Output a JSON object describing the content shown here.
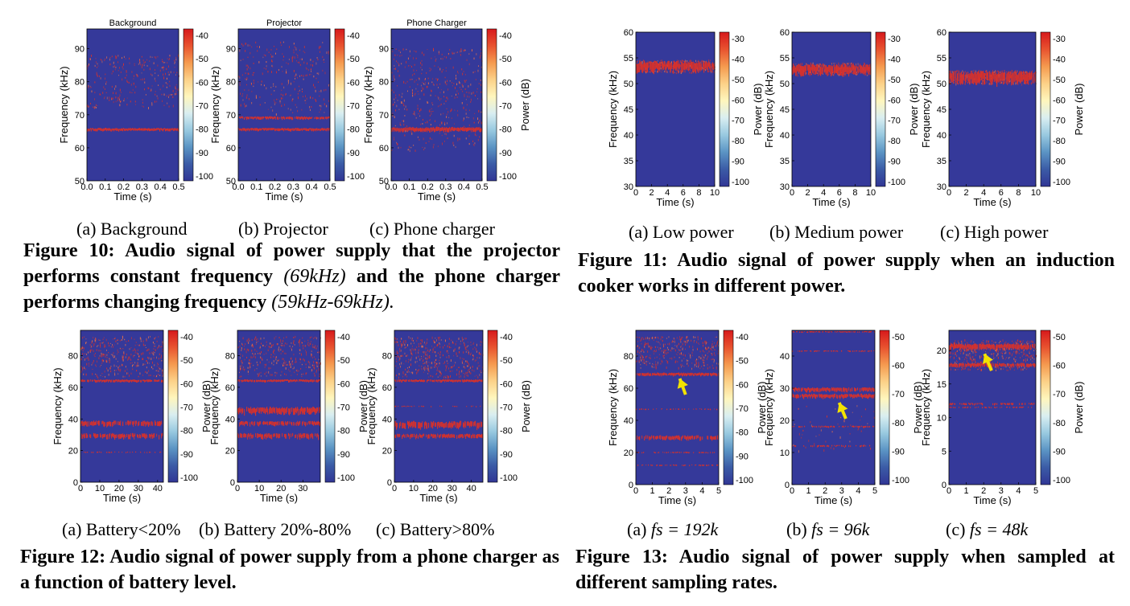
{
  "colors": {
    "background": "#35399a",
    "signal": "#d8312a",
    "arrow": "#f2e200"
  },
  "figure10": {
    "subcaptions": [
      "(a) Background",
      "(b) Projector",
      "(c) Phone charger"
    ],
    "caption_main": "Figure 10: Audio signal of power supply that the projector performs constant frequency",
    "caption_f1": "(69kHz)",
    "caption_mid": "and the phone charger performs changing frequency",
    "caption_f2": "(59kHz-69kHz).",
    "chart_data": [
      {
        "type": "heatmap",
        "title": "Background",
        "xlabel": "Time (s)",
        "ylabel": "Frequency (kHz)",
        "colorbar_label": "",
        "xticks": [
          "0.0",
          "0.1",
          "0.2",
          "0.3",
          "0.4",
          "0.5"
        ],
        "yticks": [
          "50",
          "60",
          "70",
          "80",
          "90"
        ],
        "xlim": [
          0,
          0.5
        ],
        "ylim": [
          50,
          96
        ],
        "cticks": [
          "-40",
          "-50",
          "-60",
          "-70",
          "-80",
          "-90",
          "-100"
        ],
        "bands": [
          {
            "freq": 65.5,
            "width": 0.8,
            "density": 1.0
          }
        ],
        "scatter": {
          "lo": 72,
          "hi": 88,
          "density": 0.25
        },
        "arrows": []
      },
      {
        "type": "heatmap",
        "title": "Projector",
        "xlabel": "Time (s)",
        "ylabel": "Frequency (kHz)",
        "colorbar_label": "",
        "xticks": [
          "0.0",
          "0.1",
          "0.2",
          "0.3",
          "0.4",
          "0.5"
        ],
        "yticks": [
          "50",
          "60",
          "70",
          "80",
          "90"
        ],
        "xlim": [
          0,
          0.5
        ],
        "ylim": [
          50,
          96
        ],
        "cticks": [
          "-40",
          "-50",
          "-60",
          "-70",
          "-80",
          "-90",
          "-100"
        ],
        "bands": [
          {
            "freq": 65.5,
            "width": 0.8,
            "density": 1.0
          },
          {
            "freq": 69,
            "width": 0.8,
            "density": 0.8
          }
        ],
        "scatter": {
          "lo": 70,
          "hi": 92,
          "density": 0.25
        },
        "arrows": []
      },
      {
        "type": "heatmap",
        "title": "Phone Charger",
        "xlabel": "Time (s)",
        "ylabel": "Frequency (kHz)",
        "colorbar_label": "Power (dB)",
        "xticks": [
          "0.0",
          "0.1",
          "0.2",
          "0.3",
          "0.4",
          "0.5"
        ],
        "yticks": [
          "50",
          "60",
          "70",
          "80",
          "90"
        ],
        "xlim": [
          0,
          0.5
        ],
        "ylim": [
          50,
          96
        ],
        "cticks": [
          "-40",
          "-50",
          "-60",
          "-70",
          "-80",
          "-90",
          "-100"
        ],
        "bands": [
          {
            "freq": 65.5,
            "width": 1.2,
            "density": 1.0
          }
        ],
        "scatter": {
          "lo": 59,
          "hi": 90,
          "density": 0.4
        },
        "arrows": []
      }
    ]
  },
  "figure11": {
    "subcaptions": [
      "(a) Low power",
      "(b) Medium power",
      "(c) High power"
    ],
    "caption": "Figure 11: Audio signal of power supply when an induction cooker works in different power.",
    "chart_data": [
      {
        "type": "heatmap",
        "title": "",
        "xlabel": "Time (s)",
        "ylabel": "Frequency (kHz)",
        "colorbar_label": "Power (dB)",
        "xticks": [
          "0",
          "2",
          "4",
          "6",
          "8",
          "10"
        ],
        "yticks": [
          "30",
          "35",
          "40",
          "45",
          "50",
          "55",
          "60"
        ],
        "xlim": [
          0,
          10
        ],
        "ylim": [
          30,
          60
        ],
        "cticks": [
          "-30",
          "-40",
          "-50",
          "-60",
          "-70",
          "-80",
          "-90",
          "-100"
        ],
        "bands": [
          {
            "freq": 53.2,
            "width": 1.8,
            "density": 0.9
          }
        ],
        "scatter": {
          "lo": 52,
          "hi": 54.5,
          "density": 0.3
        },
        "arrows": []
      },
      {
        "type": "heatmap",
        "title": "",
        "xlabel": "Time (s)",
        "ylabel": "Frequency (kHz)",
        "colorbar_label": "Power (dB)",
        "xticks": [
          "0",
          "2",
          "4",
          "6",
          "8",
          "10"
        ],
        "yticks": [
          "30",
          "35",
          "40",
          "45",
          "50",
          "55",
          "60"
        ],
        "xlim": [
          0,
          10
        ],
        "ylim": [
          30,
          60
        ],
        "cticks": [
          "-30",
          "-40",
          "-50",
          "-60",
          "-70",
          "-80",
          "-90",
          "-100"
        ],
        "bands": [
          {
            "freq": 52.6,
            "width": 1.8,
            "density": 0.9
          }
        ],
        "scatter": {
          "lo": 51.5,
          "hi": 54,
          "density": 0.3
        },
        "arrows": []
      },
      {
        "type": "heatmap",
        "title": "",
        "xlabel": "Time (s)",
        "ylabel": "Frequency (kHz)",
        "colorbar_label": "Power (dB)",
        "xticks": [
          "0",
          "2",
          "4",
          "6",
          "8",
          "10"
        ],
        "yticks": [
          "30",
          "35",
          "40",
          "45",
          "50",
          "55",
          "60"
        ],
        "xlim": [
          0,
          10
        ],
        "ylim": [
          30,
          60
        ],
        "cticks": [
          "-30",
          "-40",
          "-50",
          "-60",
          "-70",
          "-80",
          "-90",
          "-100"
        ],
        "bands": [
          {
            "freq": 51.0,
            "width": 2.2,
            "density": 0.9
          }
        ],
        "scatter": {
          "lo": 49.8,
          "hi": 52.5,
          "density": 0.3
        },
        "arrows": []
      }
    ]
  },
  "figure12": {
    "subcaptions": [
      "(a) Battery<20%",
      "(b) Battery 20%-80%",
      "(c) Battery>80%"
    ],
    "caption": "Figure 12: Audio signal of power supply from a phone charger as a function of battery level.",
    "chart_data": [
      {
        "type": "heatmap",
        "title": "",
        "xlabel": "Time (s)",
        "ylabel": "Frequency (kHz)",
        "colorbar_label": "Power (dB)",
        "xticks": [
          "0",
          "10",
          "20",
          "30",
          "40"
        ],
        "xtickvals": [
          0,
          10,
          20,
          30,
          40
        ],
        "yticks": [
          "0",
          "20",
          "40",
          "60",
          "80"
        ],
        "xlim": [
          0,
          43
        ],
        "ylim": [
          0,
          96
        ],
        "cticks": [
          "-40",
          "-50",
          "-60",
          "-70",
          "-80",
          "-90",
          "-100"
        ],
        "bands": [
          {
            "freq": 64,
            "width": 1.5,
            "density": 0.9
          },
          {
            "freq": 37,
            "width": 3,
            "density": 0.8
          },
          {
            "freq": 29,
            "width": 3,
            "density": 0.75
          },
          {
            "freq": 19,
            "width": 0.5,
            "density": 0.3
          }
        ],
        "scatter": {
          "lo": 66,
          "hi": 92,
          "density": 0.35
        },
        "arrows": []
      },
      {
        "type": "heatmap",
        "title": "",
        "xlabel": "Time (s)",
        "ylabel": "Frequency (kHz)",
        "colorbar_label": "Power (dB)",
        "xticks": [
          "0",
          "10",
          "20",
          "30"
        ],
        "xtickvals": [
          0,
          10,
          20,
          30
        ],
        "yticks": [
          "0",
          "20",
          "40",
          "60",
          "80"
        ],
        "xlim": [
          0,
          38
        ],
        "ylim": [
          0,
          96
        ],
        "cticks": [
          "-40",
          "-50",
          "-60",
          "-70",
          "-80",
          "-90",
          "-100"
        ],
        "bands": [
          {
            "freq": 64,
            "width": 1.5,
            "density": 0.9
          },
          {
            "freq": 45,
            "width": 4,
            "density": 0.85
          },
          {
            "freq": 37,
            "width": 2.5,
            "density": 0.75
          },
          {
            "freq": 29,
            "width": 3,
            "density": 0.75
          }
        ],
        "scatter": {
          "lo": 66,
          "hi": 92,
          "density": 0.35
        },
        "arrows": []
      },
      {
        "type": "heatmap",
        "title": "",
        "xlabel": "Time (s)",
        "ylabel": "Frequency (kHz)",
        "colorbar_label": "Power (dB)",
        "xticks": [
          "0",
          "10",
          "20",
          "30",
          "40"
        ],
        "xtickvals": [
          0,
          10,
          20,
          30,
          40
        ],
        "yticks": [
          "0",
          "20",
          "40",
          "60",
          "80"
        ],
        "xlim": [
          0,
          46
        ],
        "ylim": [
          0,
          96
        ],
        "cticks": [
          "-40",
          "-50",
          "-60",
          "-70",
          "-80",
          "-90",
          "-100"
        ],
        "bands": [
          {
            "freq": 64,
            "width": 1.5,
            "density": 0.9
          },
          {
            "freq": 36,
            "width": 4,
            "density": 0.8
          },
          {
            "freq": 29,
            "width": 2.5,
            "density": 0.7
          },
          {
            "freq": 48,
            "width": 0.5,
            "density": 0.3
          }
        ],
        "scatter": {
          "lo": 66,
          "hi": 92,
          "density": 0.4
        },
        "arrows": []
      }
    ]
  },
  "figure13": {
    "subcaption_prefixes": [
      "(a)",
      "(b)",
      "(c)"
    ],
    "subcaption_formulas": [
      "fs = 192k",
      "fs = 96k",
      "fs = 48k"
    ],
    "caption": "Figure 13: Audio signal of power supply when sampled at different sampling rates.",
    "chart_data": [
      {
        "type": "heatmap",
        "title": "",
        "xlabel": "Time (s)",
        "ylabel": "Frequency (kHz)",
        "colorbar_label": "Power (dB)",
        "xticks": [
          "0",
          "1",
          "2",
          "3",
          "4",
          "5"
        ],
        "yticks": [
          "0",
          "20",
          "40",
          "60",
          "80"
        ],
        "xlim": [
          0,
          5
        ],
        "ylim": [
          0,
          96
        ],
        "cticks": [
          "-40",
          "-50",
          "-60",
          "-70",
          "-80",
          "-90",
          "-100"
        ],
        "bands": [
          {
            "freq": 68.5,
            "width": 1.8,
            "density": 0.95
          },
          {
            "freq": 29,
            "width": 2.5,
            "density": 0.75
          },
          {
            "freq": 20,
            "width": 0.6,
            "density": 0.4
          },
          {
            "freq": 47,
            "width": 0.5,
            "density": 0.3
          },
          {
            "freq": 12,
            "width": 0.8,
            "density": 0.4
          }
        ],
        "scatter": {
          "lo": 72,
          "hi": 92,
          "density": 0.35
        },
        "arrows": [
          {
            "x": 2.65,
            "y": 66,
            "dx": 0.35,
            "dy": -10
          }
        ]
      },
      {
        "type": "heatmap",
        "title": "",
        "xlabel": "Time (s)",
        "ylabel": "Frequency (kHz)",
        "colorbar_label": "Power (dB)",
        "xticks": [
          "0",
          "1",
          "2",
          "3",
          "4",
          "5"
        ],
        "yticks": [
          "0",
          "10",
          "20",
          "30",
          "40"
        ],
        "xlim": [
          0,
          5
        ],
        "ylim": [
          0,
          48
        ],
        "cticks": [
          "-50",
          "-60",
          "-70",
          "-80",
          "-90",
          "-100"
        ],
        "bands": [
          {
            "freq": 29.5,
            "width": 1.2,
            "density": 0.9
          },
          {
            "freq": 27.5,
            "width": 1.2,
            "density": 0.9
          },
          {
            "freq": 41.5,
            "width": 0.4,
            "density": 0.5
          },
          {
            "freq": 18,
            "width": 0.5,
            "density": 0.4
          },
          {
            "freq": 12,
            "width": 0.5,
            "density": 0.4
          },
          {
            "freq": 47.5,
            "width": 0.4,
            "density": 0.6
          }
        ],
        "scatter": {
          "lo": 10,
          "hi": 25,
          "density": 0.05
        },
        "arrows": [
          {
            "x": 2.85,
            "y": 25.5,
            "dx": 0.4,
            "dy": -5
          }
        ]
      },
      {
        "type": "heatmap",
        "title": "",
        "xlabel": "Time (s)",
        "ylabel": "Frequency (kHz)",
        "colorbar_label": "Power (dB)",
        "xticks": [
          "0",
          "1",
          "2",
          "3",
          "4",
          "5"
        ],
        "yticks": [
          "0",
          "5",
          "10",
          "15",
          "20"
        ],
        "xlim": [
          0,
          5
        ],
        "ylim": [
          0,
          23
        ],
        "cticks": [
          "-50",
          "-60",
          "-70",
          "-80",
          "-90",
          "-100"
        ],
        "bands": [
          {
            "freq": 20.5,
            "width": 0.8,
            "density": 0.95
          },
          {
            "freq": 17.8,
            "width": 0.5,
            "density": 0.9
          },
          {
            "freq": 12,
            "width": 0.3,
            "density": 0.5
          },
          {
            "freq": 11.5,
            "width": 0.2,
            "density": 0.4
          }
        ],
        "scatter": {
          "lo": 17,
          "hi": 21.5,
          "density": 0.4
        },
        "arrows": [
          {
            "x": 2.05,
            "y": 19.5,
            "dx": 0.4,
            "dy": -2.5
          }
        ]
      }
    ]
  }
}
